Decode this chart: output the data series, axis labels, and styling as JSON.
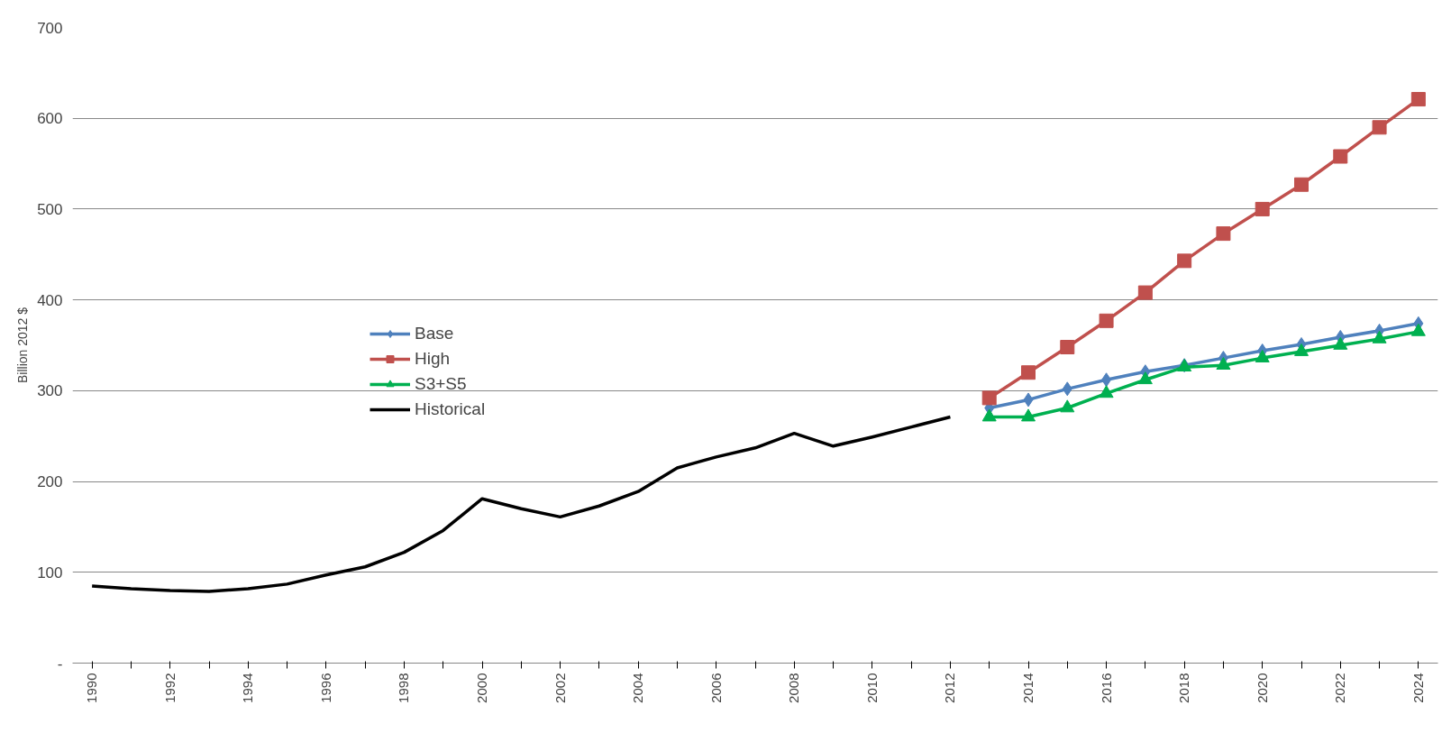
{
  "chart_data": {
    "type": "line",
    "ylabel": "Billion 2012 $",
    "categories": [
      "1990",
      null,
      "1992",
      null,
      "1994",
      null,
      "1996",
      null,
      "1998",
      null,
      "2000",
      null,
      "2002",
      null,
      "2004",
      null,
      "2006",
      null,
      "2008",
      null,
      "2010",
      null,
      "2012",
      null,
      "2014",
      null,
      "2016",
      null,
      "2018",
      null,
      "2020",
      null,
      "2022",
      null,
      "2024"
    ],
    "ylim": [
      0,
      700
    ],
    "yticks": [
      {
        "value": 0,
        "label": "-"
      },
      100,
      200,
      300,
      400,
      500,
      600,
      700
    ],
    "grid": "y",
    "legend": "left",
    "series": [
      {
        "name": "Base",
        "color": "#4f81bd",
        "marker": "diamond",
        "values": [
          null,
          null,
          null,
          null,
          null,
          null,
          null,
          null,
          null,
          null,
          null,
          null,
          null,
          null,
          null,
          null,
          null,
          null,
          null,
          null,
          null,
          null,
          null,
          281,
          290,
          302,
          312,
          321,
          328,
          336,
          344,
          351,
          359,
          366,
          374
        ]
      },
      {
        "name": "High",
        "color": "#c0504d",
        "marker": "square",
        "values": [
          null,
          null,
          null,
          null,
          null,
          null,
          null,
          null,
          null,
          null,
          null,
          null,
          null,
          null,
          null,
          null,
          null,
          null,
          null,
          null,
          null,
          null,
          null,
          292,
          320,
          348,
          377,
          408,
          443,
          473,
          500,
          527,
          558,
          590,
          621
        ]
      },
      {
        "name": "S3+S5",
        "color": "#00b050",
        "marker": "triangle",
        "values": [
          null,
          null,
          null,
          null,
          null,
          null,
          null,
          null,
          null,
          null,
          null,
          null,
          null,
          null,
          null,
          null,
          null,
          null,
          null,
          null,
          null,
          null,
          null,
          271,
          271,
          281,
          297,
          312,
          326,
          328,
          336,
          343,
          350,
          357,
          365
        ]
      },
      {
        "name": "Historical",
        "color": "#000000",
        "marker": "none",
        "values": [
          85,
          82,
          80,
          79,
          82,
          87,
          97,
          106,
          122,
          146,
          181,
          170,
          161,
          173,
          189,
          215,
          227,
          237,
          253,
          239,
          249,
          260,
          271,
          null,
          null,
          null,
          null,
          null,
          null,
          null,
          null,
          null,
          null,
          null,
          null
        ]
      }
    ]
  }
}
